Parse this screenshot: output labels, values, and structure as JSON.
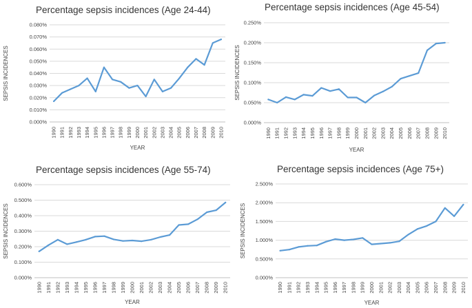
{
  "chart_data": [
    {
      "type": "line",
      "title": "Percentage sepsis incidences (Age 24-44)",
      "xlabel": "YEAR",
      "ylabel": "SEPSIS INCIDENCES",
      "ylim": [
        0,
        0.08
      ],
      "yticks": [
        "0.000%",
        "0.010%",
        "0.020%",
        "0.030%",
        "0.040%",
        "0.050%",
        "0.060%",
        "0.070%",
        "0.080%"
      ],
      "grid": true,
      "color": "#5b9bd5",
      "x": [
        "1990",
        "1991",
        "1992",
        "1993",
        "1994",
        "1995",
        "1996",
        "1997",
        "1998",
        "1999",
        "2000",
        "2001",
        "2002",
        "2003",
        "2004",
        "2005",
        "2006",
        "2007",
        "2008",
        "2009",
        "2010"
      ],
      "values": [
        0.017,
        0.024,
        0.027,
        0.03,
        0.036,
        0.025,
        0.045,
        0.035,
        0.033,
        0.028,
        0.03,
        0.021,
        0.035,
        0.025,
        0.028,
        0.036,
        0.045,
        0.052,
        0.047,
        0.065,
        0.068
      ]
    },
    {
      "type": "line",
      "title": "Percentage sepsis incidences (Age 45-54)",
      "xlabel": "YEAR",
      "ylabel": "SEPSIS INCIDENCES",
      "ylim": [
        0,
        0.25
      ],
      "yticks": [
        "0.000%",
        "0.050%",
        "0.100%",
        "0.150%",
        "0.200%",
        "0.250%"
      ],
      "grid": true,
      "color": "#5b9bd5",
      "x": [
        "1990",
        "1991",
        "1992",
        "1993",
        "1994",
        "1995",
        "1996",
        "1997",
        "1998",
        "1999",
        "2000",
        "2001",
        "2002",
        "2003",
        "2004",
        "2005",
        "2006",
        "2007",
        "2008",
        "2009",
        "2010"
      ],
      "values": [
        0.058,
        0.05,
        0.064,
        0.058,
        0.07,
        0.067,
        0.087,
        0.079,
        0.084,
        0.063,
        0.063,
        0.05,
        0.068,
        0.078,
        0.09,
        0.11,
        0.117,
        0.124,
        0.181,
        0.198,
        0.2
      ]
    },
    {
      "type": "line",
      "title": "Percentage sepsis incidences (Age 55-74)",
      "xlabel": "YEAR",
      "ylabel": "SEPSIS INCIDENCES",
      "ylim": [
        0,
        0.6
      ],
      "yticks": [
        "0.000%",
        "0.100%",
        "0.200%",
        "0.300%",
        "0.400%",
        "0.500%",
        "0.600%"
      ],
      "grid": true,
      "color": "#5b9bd5",
      "x": [
        "1990",
        "1991",
        "1992",
        "1993",
        "1994",
        "1995",
        "1996",
        "1997",
        "1998",
        "1999",
        "2000",
        "2001",
        "2002",
        "2003",
        "2004",
        "2005",
        "2006",
        "2007",
        "2008",
        "2009",
        "2010"
      ],
      "values": [
        0.17,
        0.21,
        0.245,
        0.216,
        0.23,
        0.245,
        0.265,
        0.268,
        0.247,
        0.237,
        0.24,
        0.235,
        0.245,
        0.262,
        0.275,
        0.34,
        0.345,
        0.377,
        0.422,
        0.435,
        0.485
      ]
    },
    {
      "type": "line",
      "title": "Percentage sepsis incidences (Age 75+)",
      "xlabel": "YEAR",
      "ylabel": "SEPSIS INCIDENCES",
      "ylim": [
        0,
        2.5
      ],
      "yticks": [
        "0.000%",
        "0.500%",
        "1.000%",
        "1.500%",
        "2.000%",
        "2.500%"
      ],
      "grid": true,
      "color": "#5b9bd5",
      "x": [
        "1990",
        "1991",
        "1992",
        "1993",
        "1994",
        "1995",
        "1996",
        "1997",
        "1998",
        "1999",
        "2000",
        "2001",
        "2002",
        "2003",
        "2004",
        "2005",
        "2006",
        "2007",
        "2008",
        "2009",
        "2010"
      ],
      "values": [
        0.72,
        0.75,
        0.82,
        0.85,
        0.86,
        0.96,
        1.03,
        1.0,
        1.02,
        1.06,
        0.89,
        0.91,
        0.93,
        0.97,
        1.15,
        1.3,
        1.38,
        1.5,
        1.86,
        1.64,
        1.95
      ]
    }
  ]
}
